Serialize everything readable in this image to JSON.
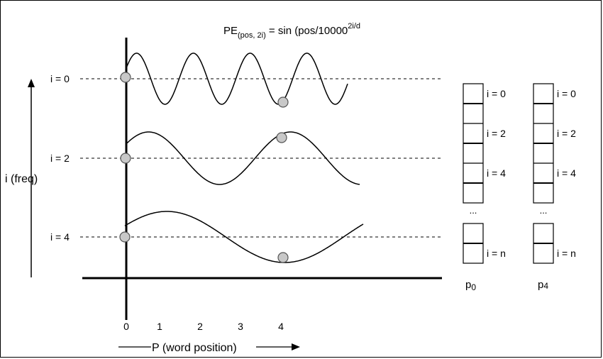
{
  "formula": {
    "lhs": "PE",
    "lhs_sub": "(pos, 2i)",
    "rhs": " = sin (pos/10000",
    "rhs_sup": "2i/d"
  },
  "y_axis_label": "i (freq)",
  "x_axis_label": "P (word position)",
  "x_ticks": [
    "0",
    "1",
    "2",
    "3",
    "4"
  ],
  "rows": [
    {
      "label": "i = 0"
    },
    {
      "label": "i = 2"
    },
    {
      "label": "i = 4"
    }
  ],
  "vectors": [
    {
      "name": "p",
      "name_sub": "0",
      "labels": [
        "i = 0",
        "i = 2",
        "i = 4",
        "i = n"
      ],
      "ellipsis": "..."
    },
    {
      "name": "p",
      "name_sub": "4",
      "labels": [
        "i = 0",
        "i = 2",
        "i = 4",
        "i = n"
      ],
      "ellipsis": "..."
    }
  ],
  "colors": {
    "stroke": "#000000",
    "dot_fill": "#c8c8c8",
    "dot_stroke": "#555555"
  }
}
